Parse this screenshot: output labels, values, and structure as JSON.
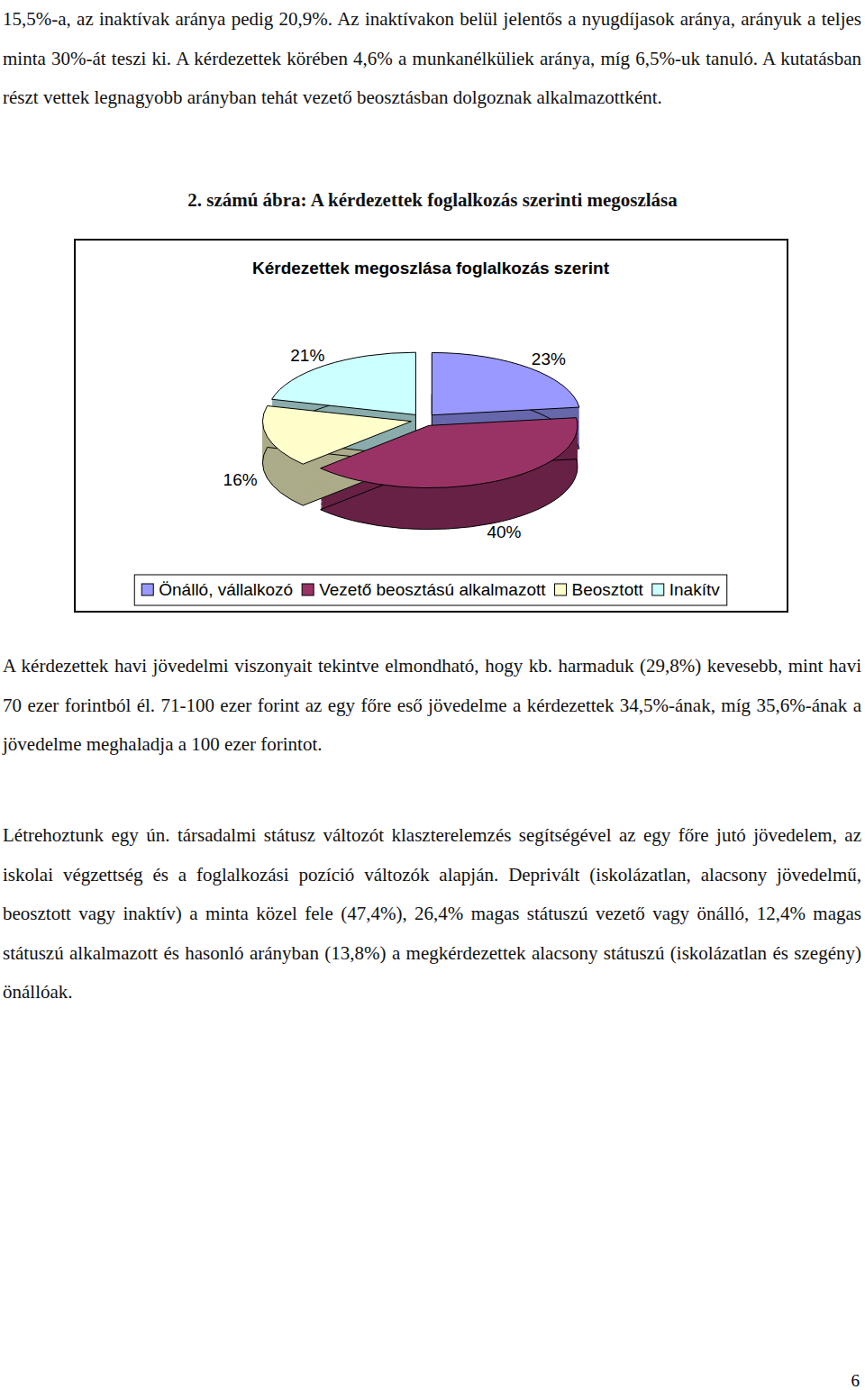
{
  "paragraphs_top": [
    "15,5%-a, az inaktívak aránya pedig 20,9%. Az inaktívakon belül jelentős a nyugdíjasok aránya, arányuk a teljes minta 30%-át teszi ki. A kérdezettek körében 4,6% a munkanélküliek aránya, míg 6,5%-uk tanuló. A kutatásban részt vettek legnagyobb arányban tehát vezető beosztásban dolgoznak alkalmazottként."
  ],
  "figure_caption": "2. számú ábra: A kérdezettek foglalkozás szerinti megoszlása",
  "chart_data": {
    "type": "pie",
    "title": "Kérdezettek megoszlása foglalkozás szerint",
    "categories": [
      "Önálló, vállalkozó",
      "Vezető beosztású alkalmazott",
      "Beosztott",
      "Inakítv"
    ],
    "values": [
      23,
      40,
      16,
      21
    ],
    "value_labels": [
      "23%",
      "40%",
      "16%",
      "21%"
    ],
    "colors": [
      "#9999ff",
      "#993366",
      "#ffffcc",
      "#ccffff"
    ],
    "data_labels": true,
    "legend": "bottom"
  },
  "paragraphs_bottom": [
    "A kérdezettek havi jövedelmi viszonyait tekintve elmondható, hogy kb. harmaduk (29,8%) kevesebb, mint havi 70 ezer forintból él. 71-100 ezer forint az egy főre eső jövedelme a kérdezettek 34,5%-ának, míg 35,6%-ának a jövedelme meghaladja a 100 ezer forintot.",
    "Létrehoztunk egy ún. társadalmi státusz változót klaszterelemzés segítségével az egy főre jutó jövedelem, az iskolai végzettség és a foglalkozási pozíció változók alapján. Deprivált (iskolázatlan, alacsony jövedelmű, beosztott vagy inaktív) a minta közel fele (47,4%), 26,4% magas státuszú vezető vagy önálló, 12,4% magas státuszú alkalmazott és hasonló arányban (13,8%) a megkérdezettek alacsony státuszú (iskolázatlan és szegény) önállóak."
  ],
  "page_number": 6
}
